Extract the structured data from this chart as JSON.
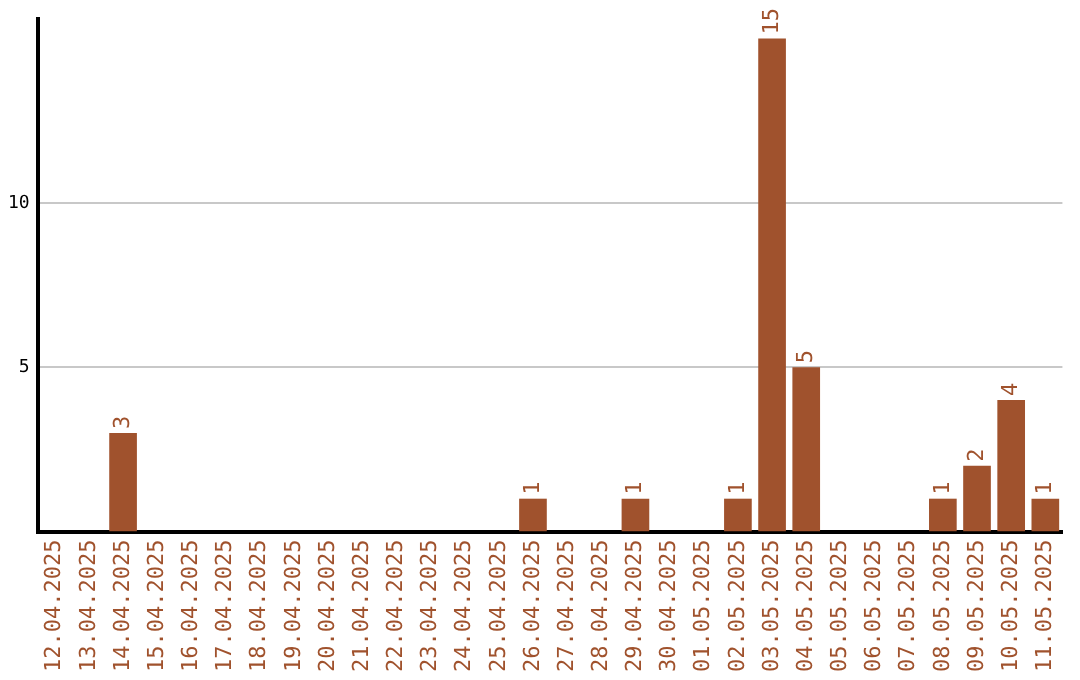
{
  "chart_data": {
    "type": "bar",
    "categories": [
      "12.04.2025",
      "13.04.2025",
      "14.04.2025",
      "15.04.2025",
      "16.04.2025",
      "17.04.2025",
      "18.04.2025",
      "19.04.2025",
      "20.04.2025",
      "21.04.2025",
      "22.04.2025",
      "23.04.2025",
      "24.04.2025",
      "25.04.2025",
      "26.04.2025",
      "27.04.2025",
      "28.04.2025",
      "29.04.2025",
      "30.04.2025",
      "01.05.2025",
      "02.05.2025",
      "03.05.2025",
      "04.05.2025",
      "05.05.2025",
      "06.05.2025",
      "07.05.2025",
      "08.05.2025",
      "09.05.2025",
      "10.05.2025",
      "11.05.2025"
    ],
    "values": [
      0,
      0,
      3,
      0,
      0,
      0,
      0,
      0,
      0,
      0,
      0,
      0,
      0,
      0,
      1,
      0,
      0,
      1,
      0,
      0,
      1,
      15,
      5,
      0,
      0,
      0,
      1,
      2,
      4,
      1
    ],
    "value_labels": [
      null,
      null,
      "3",
      null,
      null,
      null,
      null,
      null,
      null,
      null,
      null,
      null,
      null,
      null,
      "1",
      null,
      null,
      "1",
      null,
      null,
      "1",
      "15",
      "5",
      null,
      null,
      null,
      "1",
      "2",
      "4",
      "1"
    ],
    "color": "#a0522d",
    "ylim": [
      0,
      15.6
    ],
    "yticks": [
      5,
      10
    ],
    "grid": "y",
    "legend": false
  }
}
